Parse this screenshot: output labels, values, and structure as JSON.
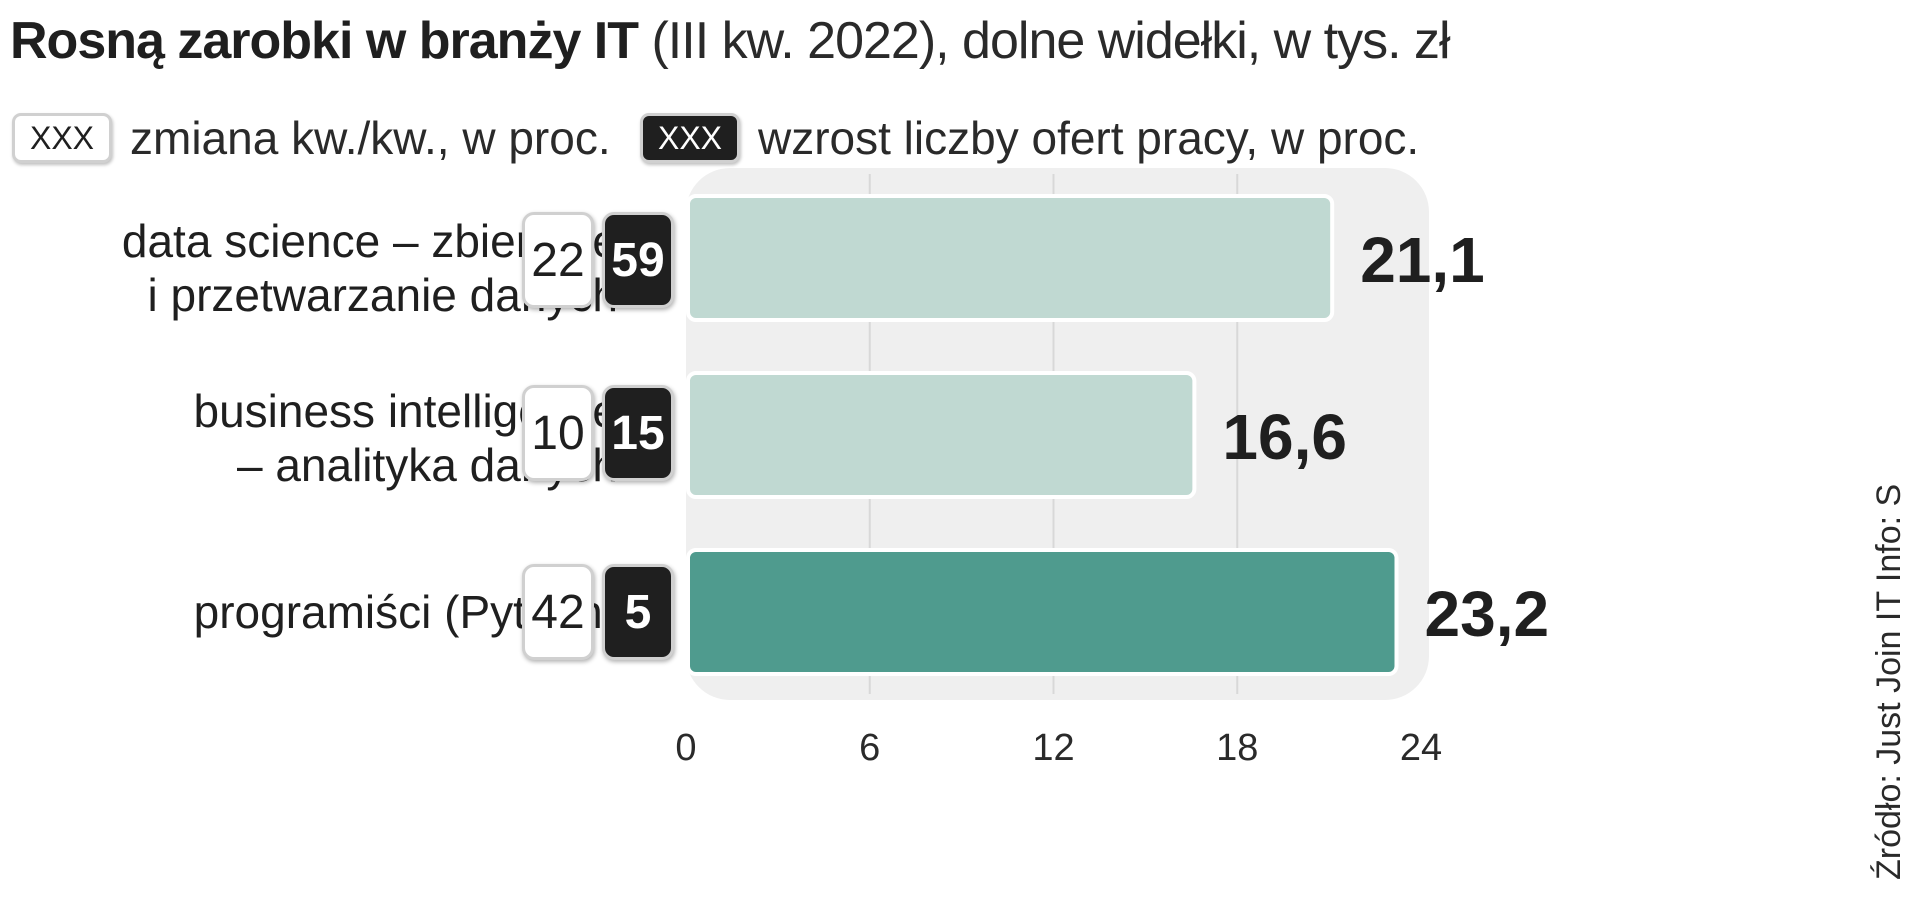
{
  "title_bold": "Rosną zarobki w branży IT",
  "title_rest": " (III kw. 2022), dolne widełki, w tys. zł",
  "legend": {
    "change_box": "XXX",
    "change_label": "zmiana kw./kw., w proc.",
    "offers_box": "XXX",
    "offers_label": "wzrost liczby ofert pracy, w proc."
  },
  "source": "Źródło: Just Join IT   Info: S",
  "colors": {
    "bar_light": "#c0d9d2",
    "bar_dark": "#4f9b8e",
    "plot_bg": "#efefef",
    "grid": "#d8d8d8",
    "badge_dark": "#1f1f1f"
  },
  "chart_data": {
    "type": "bar",
    "orientation": "horizontal",
    "categories": [
      "data science – zbieranie i przetwarzanie danych",
      "business intelligence – analityka danych",
      "programiści (Python)"
    ],
    "values": [
      21.1,
      16.6,
      23.2
    ],
    "value_labels": [
      "21,1",
      "16,6",
      "23,2"
    ],
    "change_qoq_pct": [
      22,
      10,
      42
    ],
    "job_offers_growth_pct": [
      59,
      15,
      5
    ],
    "xlim": [
      0,
      24
    ],
    "xticks": [
      0,
      6,
      12,
      18,
      24
    ],
    "xtick_labels": [
      "0",
      "6",
      "12",
      "18",
      "24"
    ],
    "highlight": [
      false,
      false,
      true
    ],
    "grid": true
  },
  "rows": [
    {
      "label_line1": "data science – zbieranie",
      "label_line2": "i przetwarzanie danych",
      "change": "22",
      "offers": "59"
    },
    {
      "label_line1": "business intelligence",
      "label_line2": "– analityka danych",
      "change": "10",
      "offers": "15"
    },
    {
      "label_line1": "programiści (Python)",
      "label_line2": "",
      "change": "42",
      "offers": "5"
    }
  ]
}
